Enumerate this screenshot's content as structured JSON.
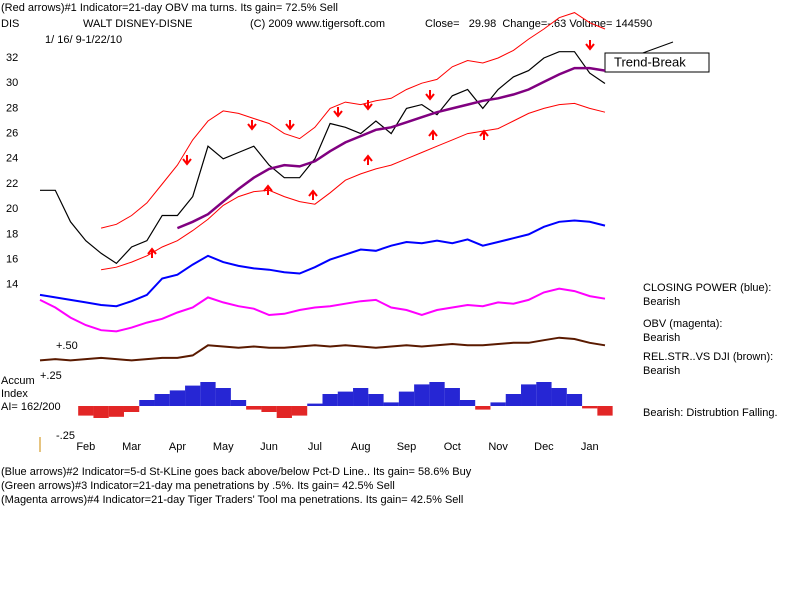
{
  "header": {
    "line1": "(Red arrows)#1 Indicator=21-day OBV ma turns.  Its gain= 72.5% Sell",
    "symbol": "DIS",
    "name": "WALT DISNEY-DISNE",
    "copyright": "(C) 2009 www.tigersoft.com",
    "quote": "Close=   29.98  Change=-.63 Volume= 144590",
    "dates": "1/ 16/ 9-1/22/10"
  },
  "accum_label": [
    "Accum",
    "Index",
    "AI= 162/200"
  ],
  "trend_break": "Trend-Break",
  "side_labels": [
    "CLOSING POWER (blue):",
    "Bearish",
    "OBV (magenta):",
    "Bearish",
    "REL.STR..VS DJI (brown):",
    "Bearish",
    "Bearish:  Distrubtion Falling."
  ],
  "footer": [
    "(Blue arrows)#2 Indicator=5-d St-KLine goes back above/below Pct-D Line..  Its gain= 58.6% Buy",
    "(Green arrows)#3 Indicator=21-day ma penetrations by .5%.  Its gain= 42.5% Sell",
    "(Magenta arrows)#4 Indicator=21-day Tiger Traders' Tool ma penetrations.  Its gain= 42.5% Sell"
  ],
  "chart_data": [
    {
      "type": "line",
      "categories": [
        null,
        null,
        null,
        "Feb",
        null,
        null,
        "Mar",
        null,
        null,
        "Apr",
        null,
        null,
        "May",
        null,
        null,
        "Jun",
        null,
        null,
        "Jul",
        null,
        null,
        "Aug",
        null,
        null,
        "Sep",
        null,
        null,
        "Oct",
        null,
        null,
        "Nov",
        null,
        null,
        "Dec",
        null,
        null,
        "Jan",
        null
      ],
      "ylim": [
        2,
        36
      ],
      "yticks": [
        14,
        16,
        18,
        20,
        22,
        24,
        26,
        28,
        30,
        32
      ],
      "series": [
        {
          "color": "#000000",
          "width": 1.2,
          "values": [
            21.5,
            21.5,
            19,
            17.5,
            16.5,
            15.7,
            17,
            17.5,
            19.5,
            19.5,
            21,
            25,
            24,
            24.5,
            25,
            23.5,
            22.5,
            22.5,
            24,
            26.8,
            26.5,
            26,
            27,
            26,
            28,
            28.3,
            27.5,
            29,
            29.5,
            28,
            29.5,
            30.5,
            31,
            32,
            32.5,
            32.5,
            30.8,
            29.98
          ]
        },
        {
          "color": "#ff0000",
          "width": 1,
          "values": [
            null,
            null,
            null,
            null,
            18.5,
            18.8,
            19.5,
            20.5,
            22,
            23.5,
            25.5,
            27,
            27.8,
            27.6,
            27.2,
            26.8,
            26,
            25.6,
            26.5,
            28,
            28.5,
            28.3,
            28.6,
            28.8,
            29.5,
            30,
            30.3,
            31.3,
            31.8,
            31.6,
            32,
            32.6,
            33.5,
            34.3,
            35.2,
            35.6,
            34.8,
            34.3
          ]
        },
        {
          "color": "#ff0000",
          "width": 1,
          "values": [
            null,
            null,
            null,
            null,
            15.2,
            15.4,
            15.8,
            16.3,
            17,
            17.5,
            18.3,
            19.2,
            20.3,
            21,
            21.4,
            21.5,
            21,
            20.6,
            20.4,
            21.3,
            22.3,
            22.8,
            23.2,
            23.5,
            24,
            24.5,
            25,
            25.5,
            26,
            26.2,
            26.4,
            27,
            27.6,
            28,
            28.3,
            28.4,
            28,
            27.7
          ]
        },
        {
          "color": "#800080",
          "width": 2.5,
          "values": [
            null,
            null,
            null,
            null,
            null,
            null,
            null,
            null,
            null,
            18.5,
            19,
            19.6,
            20.6,
            21.6,
            22.5,
            23.2,
            23.5,
            23.4,
            23.8,
            24.6,
            25.3,
            25.8,
            26.3,
            26.5,
            26.9,
            27.3,
            27.7,
            28,
            28.3,
            28.6,
            28.8,
            29.1,
            29.5,
            30.1,
            30.7,
            31.2,
            31.2,
            31
          ]
        },
        {
          "color": "#0000ff",
          "width": 2,
          "values": [
            13.2,
            13,
            12.8,
            12.6,
            12.4,
            12.3,
            12.7,
            13.2,
            14.5,
            14.8,
            15.6,
            16.3,
            15.8,
            15.5,
            15.3,
            15.2,
            15,
            14.9,
            15.4,
            16,
            16.4,
            16.8,
            16.7,
            17.1,
            17.4,
            17.3,
            17.5,
            17.3,
            17.6,
            17.1,
            17.4,
            17.7,
            18,
            18.6,
            19,
            19.1,
            19,
            18.7
          ]
        },
        {
          "color": "#ff00ff",
          "width": 2,
          "values": [
            12.8,
            12.2,
            11.4,
            10.8,
            10.4,
            10.3,
            10.6,
            11,
            11.3,
            11.8,
            12.2,
            13,
            12.6,
            12.3,
            12.1,
            11.6,
            11.7,
            12,
            12.2,
            12.3,
            12.5,
            12.7,
            12.8,
            12.2,
            12,
            11.6,
            12,
            12.2,
            12.4,
            12.3,
            12.6,
            12.5,
            12.8,
            13.4,
            13.7,
            13.5,
            13.1,
            12.9
          ]
        },
        {
          "color": "#5a1a00",
          "width": 2,
          "values": [
            8.0,
            8.1,
            8.0,
            8.1,
            8.2,
            8.1,
            8.0,
            8.1,
            8.2,
            8.2,
            8.4,
            9.2,
            9.1,
            9.0,
            9.1,
            9.0,
            9.0,
            9.1,
            9.2,
            9.1,
            9.2,
            9.1,
            9.0,
            9.1,
            9.2,
            9.1,
            9.2,
            9.3,
            9.2,
            9.2,
            9.3,
            9.4,
            9.4,
            9.6,
            9.8,
            9.7,
            9.4,
            9.2
          ]
        },
        {
          "color": "#000000",
          "width": 1,
          "values": [
            null,
            null,
            null,
            null,
            15.7,
            null,
            null,
            null,
            null,
            null,
            null,
            null,
            null,
            null,
            null,
            null,
            null,
            null,
            null,
            null,
            null,
            null,
            null,
            null,
            null,
            null,
            null,
            null,
            null,
            null,
            null,
            null,
            null,
            null,
            null,
            null,
            null,
            30.6
          ]
        }
      ]
    },
    {
      "type": "bar",
      "ylim": [
        -0.28,
        0.55
      ],
      "yticks": [
        {
          "value": 0.5,
          "label": "+.50"
        },
        {
          "value": 0.25,
          "label": "+.25"
        },
        {
          "value": -0.25,
          "label": "-.25"
        }
      ],
      "pos_color": "#0000cc",
      "neg_color": "#dd0000",
      "values": [
        null,
        null,
        null,
        -0.08,
        -0.1,
        -0.09,
        -0.05,
        0.05,
        0.1,
        0.13,
        0.17,
        0.2,
        0.15,
        0.05,
        -0.03,
        -0.05,
        -0.1,
        -0.08,
        0.02,
        0.1,
        0.12,
        0.15,
        0.1,
        0.03,
        0.12,
        0.18,
        0.2,
        0.15,
        0.05,
        -0.03,
        0.03,
        0.1,
        0.18,
        0.2,
        0.15,
        0.1,
        -0.02,
        -0.08
      ]
    }
  ]
}
